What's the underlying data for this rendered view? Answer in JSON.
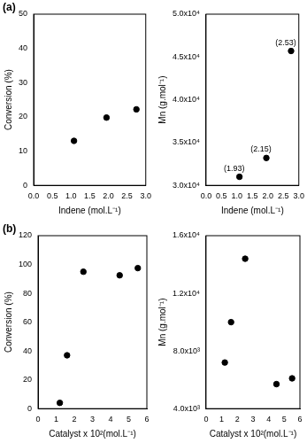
{
  "panel_labels": [
    "(a)",
    "(b)"
  ],
  "chart_data": [
    {
      "type": "scatter",
      "xlabel": "Indene (mol.L⁻¹)",
      "ylabel": "Conversion (%)",
      "x": [
        1.08,
        1.95,
        2.75
      ],
      "values": [
        13,
        19.8,
        22.2
      ],
      "xlim": [
        0,
        3
      ],
      "xticks": [
        {
          "value": 0,
          "label": "0.0"
        },
        0.5,
        {
          "value": 1,
          "label": "1.0"
        },
        1.5,
        {
          "value": 2,
          "label": "2.0"
        },
        2.5,
        {
          "value": 3,
          "label": "3.0"
        }
      ],
      "ylim": [
        0,
        50
      ],
      "yticks": [
        0,
        10,
        20,
        30,
        40,
        50
      ],
      "color": "#000000",
      "marker": "circle",
      "grid": false
    },
    {
      "type": "scatter",
      "xlabel": "Indene (mol.L⁻¹)",
      "ylabel": "Mn (g.mol⁻¹)",
      "x": [
        1.08,
        1.95,
        2.75
      ],
      "values": [
        31000,
        33200,
        45700
      ],
      "annotations": [
        "(1.93)",
        "(2.15)",
        "(2.53)"
      ],
      "xlim": [
        0,
        3
      ],
      "xticks": [
        {
          "value": 0,
          "label": "0.0"
        },
        0.5,
        {
          "value": 1,
          "label": "1.0"
        },
        1.5,
        {
          "value": 2,
          "label": "2.0"
        },
        2.5,
        {
          "value": 3,
          "label": "3.0"
        }
      ],
      "ylim": [
        30000,
        50000
      ],
      "yticks": [
        {
          "value": 30000,
          "label": "3.0x10⁴"
        },
        {
          "value": 35000,
          "label": "3.5x10⁴"
        },
        {
          "value": 40000,
          "label": "4.0x10⁴"
        },
        {
          "value": 45000,
          "label": "4.5x10⁴"
        },
        {
          "value": 50000,
          "label": "5.0x10⁴"
        }
      ],
      "color": "#000000",
      "marker": "circle",
      "grid": false
    },
    {
      "type": "scatter",
      "xlabel": "Catalyst x 10²(mol.L⁻¹)",
      "ylabel": "Conversion (%)",
      "x": [
        1.2,
        1.6,
        2.5,
        4.5,
        5.5
      ],
      "values": [
        4,
        37,
        95,
        92.5,
        97.5
      ],
      "xlim": [
        0,
        6
      ],
      "xticks": [
        0,
        1,
        2,
        3,
        4,
        5,
        6
      ],
      "ylim": [
        0,
        120
      ],
      "yticks": [
        0,
        20,
        40,
        60,
        80,
        100,
        120
      ],
      "color": "#000000",
      "marker": "circle",
      "grid": false
    },
    {
      "type": "scatter",
      "xlabel": "Catalyst x 10²(mol.L⁻¹)",
      "ylabel": "Mn (g.mol⁻¹)",
      "x": [
        1.2,
        1.6,
        2.5,
        4.5,
        5.5
      ],
      "values": [
        7200,
        10000,
        14400,
        5700,
        6100
      ],
      "xlim": [
        0,
        6
      ],
      "xticks": [
        0,
        1,
        2,
        3,
        4,
        5,
        6
      ],
      "ylim": [
        4000,
        16000
      ],
      "yticks": [
        {
          "value": 4000,
          "label": "4.0x10³"
        },
        {
          "value": 8000,
          "label": "8.0x10³"
        },
        {
          "value": 12000,
          "label": "1.2x10⁴"
        },
        {
          "value": 16000,
          "label": "1.6x10⁴"
        }
      ],
      "color": "#000000",
      "marker": "circle",
      "grid": false
    }
  ]
}
